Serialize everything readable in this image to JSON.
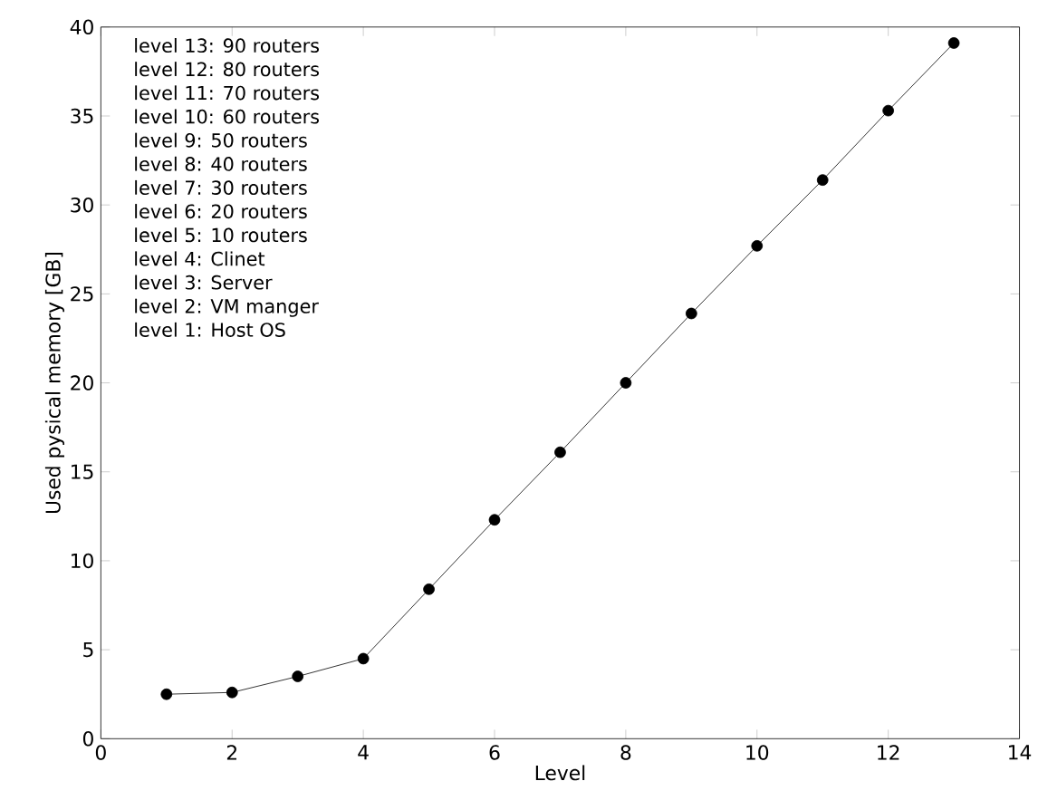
{
  "chart_data": {
    "type": "line",
    "xlabel": "Level",
    "ylabel": "Used pysical memory [GB]",
    "x": [
      1,
      2,
      3,
      4,
      5,
      6,
      7,
      8,
      9,
      10,
      11,
      12,
      13
    ],
    "values": [
      2.5,
      2.6,
      3.5,
      4.5,
      8.4,
      12.3,
      16.1,
      20.0,
      23.9,
      27.7,
      31.4,
      35.3,
      39.1
    ],
    "color": "#000000",
    "marker": "circle",
    "line_style": "solid",
    "grid": false,
    "xlim": [
      0,
      14
    ],
    "ylim": [
      0,
      40
    ],
    "xticks": [
      0,
      2,
      4,
      6,
      8,
      10,
      12,
      14
    ],
    "yticks": [
      0,
      5,
      10,
      15,
      20,
      25,
      30,
      35,
      40
    ],
    "annotations": [
      "level 13: 90 routers",
      "level 12: 80 routers",
      "level 11: 70 routers",
      "level 10: 60 routers",
      "level 9: 50 routers",
      "level 8: 40 routers",
      "level 7: 30 routers",
      "level 6: 20 routers",
      "level 5: 10 routers",
      "level 4: Clinet",
      "level 3: Server",
      "level 2: VM manger",
      "level 1: Host OS"
    ]
  }
}
